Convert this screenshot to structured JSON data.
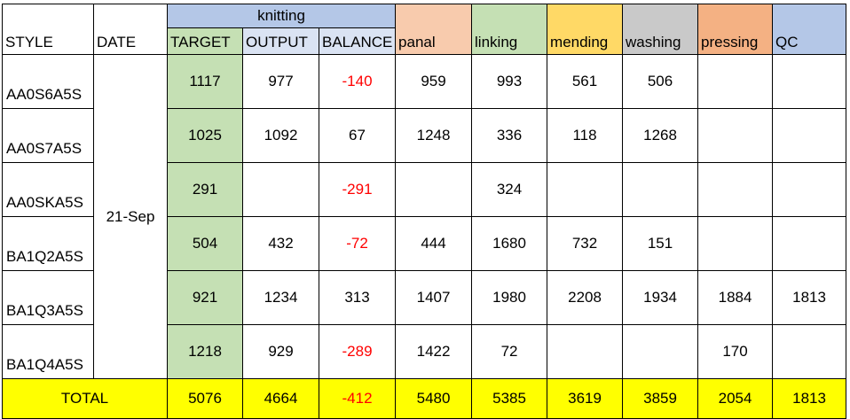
{
  "header": {
    "style": "STYLE",
    "date": "DATE",
    "knitting": "knitting",
    "target": "TARGET",
    "output": "OUTPUT",
    "balance": "BALANCE",
    "panal": "panal",
    "linking": "linking",
    "mending": "mending",
    "washing": "washing",
    "pressing": "pressing",
    "qc": "QC"
  },
  "date_value": "21-Sep",
  "rows": [
    {
      "style": "AA0S6A5S",
      "target": "1117",
      "output": "977",
      "balance": "-140",
      "panal": "959",
      "linking": "993",
      "mending": "561",
      "washing": "506",
      "pressing": "",
      "qc": ""
    },
    {
      "style": "AA0S7A5S",
      "target": "1025",
      "output": "1092",
      "balance": "67",
      "panal": "1248",
      "linking": "336",
      "mending": "118",
      "washing": "1268",
      "pressing": "",
      "qc": ""
    },
    {
      "style": "AA0SKA5S",
      "target": "291",
      "output": "",
      "balance": "-291",
      "panal": "",
      "linking": "324",
      "mending": "",
      "washing": "",
      "pressing": "",
      "qc": ""
    },
    {
      "style": "BA1Q2A5S",
      "target": "504",
      "output": "432",
      "balance": "-72",
      "panal": "444",
      "linking": "1680",
      "mending": "732",
      "washing": "151",
      "pressing": "",
      "qc": ""
    },
    {
      "style": "BA1Q3A5S",
      "target": "921",
      "output": "1234",
      "balance": "313",
      "panal": "1407",
      "linking": "1980",
      "mending": "2208",
      "washing": "1934",
      "pressing": "1884",
      "qc": "1813"
    },
    {
      "style": "BA1Q4A5S",
      "target": "1218",
      "output": "929",
      "balance": "-289",
      "panal": "1422",
      "linking": "72",
      "mending": "",
      "washing": "",
      "pressing": "170",
      "qc": ""
    }
  ],
  "total": {
    "label": "TOTAL",
    "target": "5076",
    "output": "4664",
    "balance": "-412",
    "panal": "5480",
    "linking": "5385",
    "mending": "3619",
    "washing": "3859",
    "pressing": "2054",
    "qc": "1813"
  },
  "colors": {
    "knitting_header": "#b4c7e7",
    "target": "#c5e0b4",
    "output_balance_header": "#dae3f3",
    "panal": "#f8cbad",
    "linking": "#c5e0b4",
    "mending": "#ffd966",
    "washing": "#c9c9c9",
    "pressing": "#f4b183",
    "qc": "#b4c7e7",
    "total_row": "#ffff00",
    "negative": "#ff0000"
  }
}
